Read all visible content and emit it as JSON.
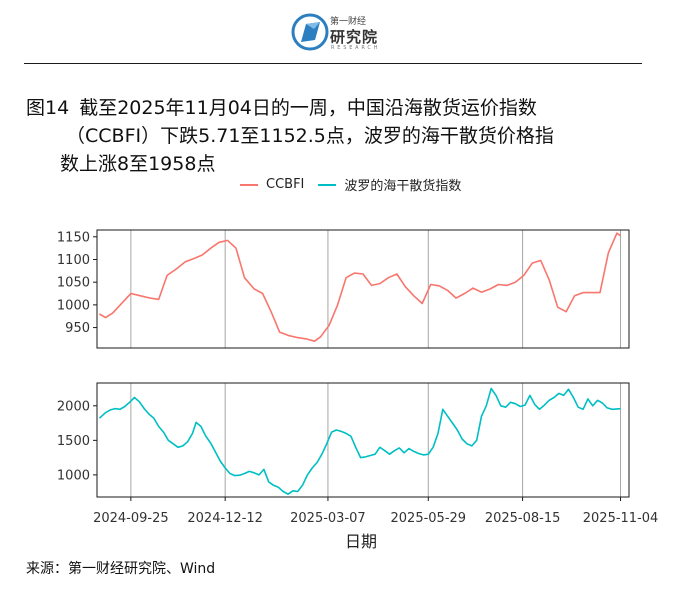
{
  "header": {
    "logo_top": "第一财经",
    "logo_main": "研究院",
    "logo_sub": "RESEARCH"
  },
  "title": {
    "fig_no": "图14",
    "line1": "截至2025年11月04日的一周，中国沿海散货运价指数",
    "line2": "（CCBFI）下跌5.71至1152.5点，波罗的海干散货价格指",
    "line3": "数上涨8至1958点"
  },
  "source": "来源：第一财经研究院、Wind",
  "colors": {
    "ccbfi": "#f8766d",
    "bdi": "#00bfc4",
    "vline": "#a6a6a6",
    "frame": "#1a1a1a"
  },
  "chart_data": {
    "type": "line",
    "xlabel": "日期",
    "x_ticks": [
      "2024-09-25",
      "2024-12-12",
      "2025-03-07",
      "2025-05-29",
      "2025-08-15",
      "2025-11-04"
    ],
    "x_range": [
      "2024-08-28",
      "2025-11-11"
    ],
    "legend": {
      "position": "top",
      "entries": [
        "CCBFI",
        "波罗的海干散货指数"
      ]
    },
    "panels": [
      {
        "series_name": "CCBFI",
        "ylim": [
          905,
          1165
        ],
        "y_ticks": [
          950,
          1000,
          1050,
          1100,
          1150
        ],
        "points": [
          [
            "2024-08-30",
            980
          ],
          [
            "2024-09-04",
            972
          ],
          [
            "2024-09-10",
            982
          ],
          [
            "2024-09-18",
            1005
          ],
          [
            "2024-09-25",
            1025
          ],
          [
            "2024-10-03",
            1020
          ],
          [
            "2024-10-11",
            1015
          ],
          [
            "2024-10-18",
            1012
          ],
          [
            "2024-10-25",
            1065
          ],
          [
            "2024-11-02",
            1080
          ],
          [
            "2024-11-09",
            1095
          ],
          [
            "2024-11-16",
            1102
          ],
          [
            "2024-11-23",
            1110
          ],
          [
            "2024-11-30",
            1125
          ],
          [
            "2024-12-07",
            1138
          ],
          [
            "2024-12-14",
            1142
          ],
          [
            "2024-12-21",
            1125
          ],
          [
            "2024-12-28",
            1060
          ],
          [
            "2025-01-05",
            1035
          ],
          [
            "2025-01-12",
            1025
          ],
          [
            "2025-01-19",
            985
          ],
          [
            "2025-01-26",
            940
          ],
          [
            "2025-02-03",
            932
          ],
          [
            "2025-02-10",
            928
          ],
          [
            "2025-02-17",
            925
          ],
          [
            "2025-02-24",
            920
          ],
          [
            "2025-03-01",
            930
          ],
          [
            "2025-03-08",
            955
          ],
          [
            "2025-03-15",
            1000
          ],
          [
            "2025-03-22",
            1060
          ],
          [
            "2025-03-29",
            1070
          ],
          [
            "2025-04-05",
            1068
          ],
          [
            "2025-04-12",
            1043
          ],
          [
            "2025-04-19",
            1047
          ],
          [
            "2025-04-26",
            1060
          ],
          [
            "2025-05-03",
            1068
          ],
          [
            "2025-05-10",
            1040
          ],
          [
            "2025-05-17",
            1020
          ],
          [
            "2025-05-24",
            1003
          ],
          [
            "2025-05-31",
            1045
          ],
          [
            "2025-06-07",
            1042
          ],
          [
            "2025-06-14",
            1032
          ],
          [
            "2025-06-21",
            1015
          ],
          [
            "2025-06-28",
            1025
          ],
          [
            "2025-07-05",
            1037
          ],
          [
            "2025-07-12",
            1028
          ],
          [
            "2025-07-19",
            1035
          ],
          [
            "2025-07-26",
            1045
          ],
          [
            "2025-08-02",
            1043
          ],
          [
            "2025-08-09",
            1050
          ],
          [
            "2025-08-16",
            1065
          ],
          [
            "2025-08-23",
            1092
          ],
          [
            "2025-08-30",
            1098
          ],
          [
            "2025-09-06",
            1055
          ],
          [
            "2025-09-13",
            995
          ],
          [
            "2025-09-20",
            985
          ],
          [
            "2025-09-27",
            1020
          ],
          [
            "2025-10-04",
            1027
          ],
          [
            "2025-10-11",
            1027
          ],
          [
            "2025-10-18",
            1027
          ],
          [
            "2025-10-25",
            1115
          ],
          [
            "2025-11-01",
            1158
          ],
          [
            "2025-11-04",
            1152.5
          ]
        ]
      },
      {
        "series_name": "波罗的海干散货指数",
        "ylim": [
          680,
          2330
        ],
        "y_ticks": [
          1000,
          1500,
          2000
        ],
        "points": [
          [
            "2024-08-30",
            1820
          ],
          [
            "2024-09-04",
            1900
          ],
          [
            "2024-09-08",
            1940
          ],
          [
            "2024-09-12",
            1960
          ],
          [
            "2024-09-16",
            1950
          ],
          [
            "2024-09-20",
            1990
          ],
          [
            "2024-09-24",
            2050
          ],
          [
            "2024-09-28",
            2120
          ],
          [
            "2024-10-02",
            2060
          ],
          [
            "2024-10-06",
            1960
          ],
          [
            "2024-10-10",
            1880
          ],
          [
            "2024-10-14",
            1820
          ],
          [
            "2024-10-18",
            1700
          ],
          [
            "2024-10-22",
            1620
          ],
          [
            "2024-10-26",
            1500
          ],
          [
            "2024-10-30",
            1450
          ],
          [
            "2024-11-03",
            1400
          ],
          [
            "2024-11-07",
            1420
          ],
          [
            "2024-11-11",
            1480
          ],
          [
            "2024-11-15",
            1600
          ],
          [
            "2024-11-18",
            1760
          ],
          [
            "2024-11-22",
            1700
          ],
          [
            "2024-11-26",
            1560
          ],
          [
            "2024-11-30",
            1460
          ],
          [
            "2024-12-04",
            1330
          ],
          [
            "2024-12-08",
            1200
          ],
          [
            "2024-12-12",
            1100
          ],
          [
            "2024-12-16",
            1020
          ],
          [
            "2024-12-20",
            990
          ],
          [
            "2024-12-24",
            995
          ],
          [
            "2024-12-28",
            1020
          ],
          [
            "2025-01-01",
            1050
          ],
          [
            "2025-01-05",
            1030
          ],
          [
            "2025-01-09",
            1000
          ],
          [
            "2025-01-13",
            1080
          ],
          [
            "2025-01-17",
            900
          ],
          [
            "2025-01-21",
            850
          ],
          [
            "2025-01-25",
            820
          ],
          [
            "2025-01-29",
            760
          ],
          [
            "2025-02-02",
            720
          ],
          [
            "2025-02-06",
            770
          ],
          [
            "2025-02-10",
            760
          ],
          [
            "2025-02-14",
            850
          ],
          [
            "2025-02-18",
            1000
          ],
          [
            "2025-02-22",
            1100
          ],
          [
            "2025-02-26",
            1180
          ],
          [
            "2025-03-02",
            1300
          ],
          [
            "2025-03-06",
            1450
          ],
          [
            "2025-03-10",
            1620
          ],
          [
            "2025-03-14",
            1650
          ],
          [
            "2025-03-18",
            1630
          ],
          [
            "2025-03-22",
            1600
          ],
          [
            "2025-03-26",
            1560
          ],
          [
            "2025-03-30",
            1400
          ],
          [
            "2025-04-03",
            1250
          ],
          [
            "2025-04-07",
            1260
          ],
          [
            "2025-04-11",
            1280
          ],
          [
            "2025-04-15",
            1300
          ],
          [
            "2025-04-19",
            1400
          ],
          [
            "2025-04-23",
            1350
          ],
          [
            "2025-04-27",
            1300
          ],
          [
            "2025-05-01",
            1350
          ],
          [
            "2025-05-05",
            1390
          ],
          [
            "2025-05-09",
            1320
          ],
          [
            "2025-05-13",
            1380
          ],
          [
            "2025-05-17",
            1340
          ],
          [
            "2025-05-21",
            1310
          ],
          [
            "2025-05-25",
            1290
          ],
          [
            "2025-05-29",
            1300
          ],
          [
            "2025-06-02",
            1400
          ],
          [
            "2025-06-06",
            1600
          ],
          [
            "2025-06-10",
            1950
          ],
          [
            "2025-06-14",
            1850
          ],
          [
            "2025-06-18",
            1750
          ],
          [
            "2025-06-22",
            1650
          ],
          [
            "2025-06-26",
            1520
          ],
          [
            "2025-06-30",
            1450
          ],
          [
            "2025-07-04",
            1420
          ],
          [
            "2025-07-08",
            1500
          ],
          [
            "2025-07-12",
            1850
          ],
          [
            "2025-07-16",
            2000
          ],
          [
            "2025-07-20",
            2250
          ],
          [
            "2025-07-24",
            2150
          ],
          [
            "2025-07-28",
            2000
          ],
          [
            "2025-08-01",
            1980
          ],
          [
            "2025-08-05",
            2050
          ],
          [
            "2025-08-09",
            2030
          ],
          [
            "2025-08-13",
            1990
          ],
          [
            "2025-08-17",
            2010
          ],
          [
            "2025-08-21",
            2150
          ],
          [
            "2025-08-25",
            2020
          ],
          [
            "2025-08-29",
            1950
          ],
          [
            "2025-09-02",
            2010
          ],
          [
            "2025-09-06",
            2080
          ],
          [
            "2025-09-10",
            2120
          ],
          [
            "2025-09-14",
            2180
          ],
          [
            "2025-09-18",
            2150
          ],
          [
            "2025-09-22",
            2240
          ],
          [
            "2025-09-26",
            2120
          ],
          [
            "2025-09-30",
            1980
          ],
          [
            "2025-10-04",
            1950
          ],
          [
            "2025-10-08",
            2100
          ],
          [
            "2025-10-12",
            2000
          ],
          [
            "2025-10-16",
            2080
          ],
          [
            "2025-10-20",
            2040
          ],
          [
            "2025-10-24",
            1970
          ],
          [
            "2025-10-28",
            1950
          ],
          [
            "2025-11-04",
            1958
          ]
        ]
      }
    ]
  }
}
